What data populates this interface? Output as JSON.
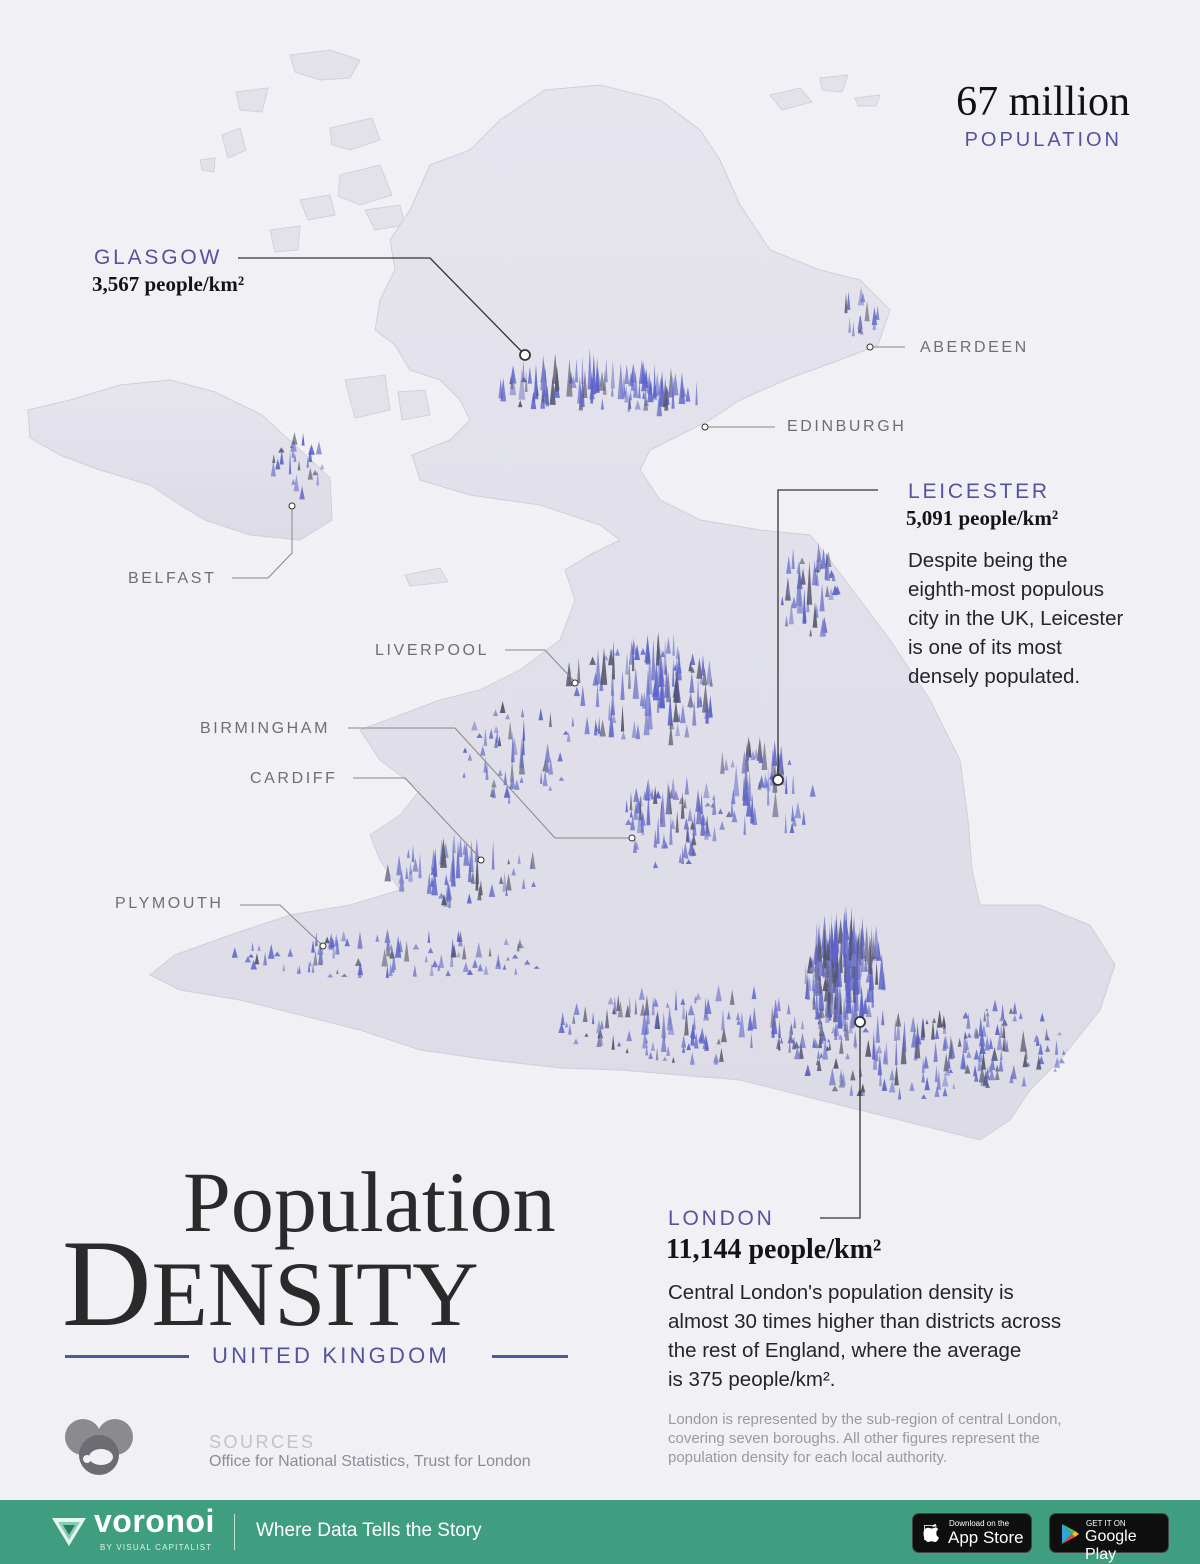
{
  "header": {
    "population_value": "67 million",
    "population_label": "POPULATION"
  },
  "title": {
    "line1": "Population",
    "line2_first": "D",
    "line2_rest": "ENSITY",
    "region": "UNITED KINGDOM"
  },
  "cities": {
    "glasgow": {
      "name": "GLASGOW",
      "density": "3,567 people/km²"
    },
    "leicester": {
      "name": "LEICESTER",
      "density": "5,091 people/km²",
      "description": [
        "Despite being the",
        "eighth-most populous",
        "city in the UK, Leicester",
        "is one of its most",
        "densely populated."
      ]
    },
    "london": {
      "name": "LONDON",
      "density": "11,144 people/km²",
      "description": [
        "Central London's population density is",
        "almost 30 times higher than districts across",
        "the rest of England, where the average",
        "is 375 people/km²."
      ]
    },
    "aberdeen": {
      "name": "ABERDEEN"
    },
    "edinburgh": {
      "name": "EDINBURGH"
    },
    "belfast": {
      "name": "BELFAST"
    },
    "liverpool": {
      "name": "LIVERPOOL"
    },
    "birmingham": {
      "name": "BIRMINGHAM"
    },
    "cardiff": {
      "name": "CARDIFF"
    },
    "plymouth": {
      "name": "PLYMOUTH"
    }
  },
  "footnote": [
    "London is represented by the sub-region of central London,",
    "covering seven boroughs. All other figures represent the",
    "population density for each local authority."
  ],
  "sources": {
    "label": "SOURCES",
    "text": "Office for National Statistics, Trust for London"
  },
  "footer": {
    "brand": "voronoi",
    "brand_sub": "BY VISUAL CAPITALIST",
    "tagline": "Where Data Tells the Story",
    "app_store_small": "Download on the",
    "app_store_big": "App Store",
    "google_small": "GET IT ON",
    "google_big": "Google Play"
  },
  "colors": {
    "background": "#f1f0f5",
    "accent": "#55539a",
    "land": "#e2e1ea",
    "spike": "#5c64c8",
    "footer": "#3f9d80"
  }
}
